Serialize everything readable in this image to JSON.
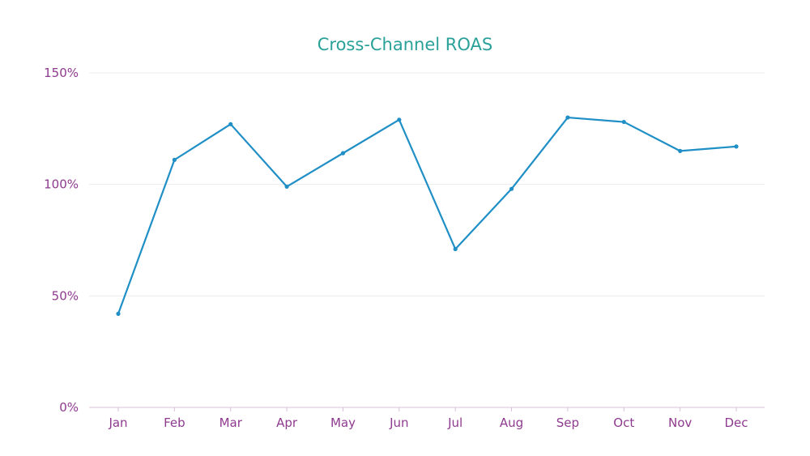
{
  "chart_data": {
    "type": "line",
    "title": "Cross-Channel ROAS",
    "xlabel": "",
    "ylabel": "",
    "categories": [
      "Jan",
      "Feb",
      "Mar",
      "Apr",
      "May",
      "Jun",
      "Jul",
      "Aug",
      "Sep",
      "Oct",
      "Nov",
      "Dec"
    ],
    "series": [
      {
        "values": [
          42,
          111,
          127,
          99,
          114,
          129,
          71,
          98,
          130,
          128,
          115,
          117
        ]
      }
    ],
    "ylim": [
      0,
      150
    ],
    "yticks": [
      0,
      50,
      100,
      150
    ],
    "ytick_labels": [
      "0%",
      "50%",
      "100%",
      "150%"
    ],
    "grid": true,
    "legend": "none"
  },
  "colors": {
    "title": "#2aa198",
    "tick_labels": "#8e3a8e",
    "line": "#1f8fc6",
    "grid": "#ececec",
    "baseline": "#d8c2d8"
  }
}
